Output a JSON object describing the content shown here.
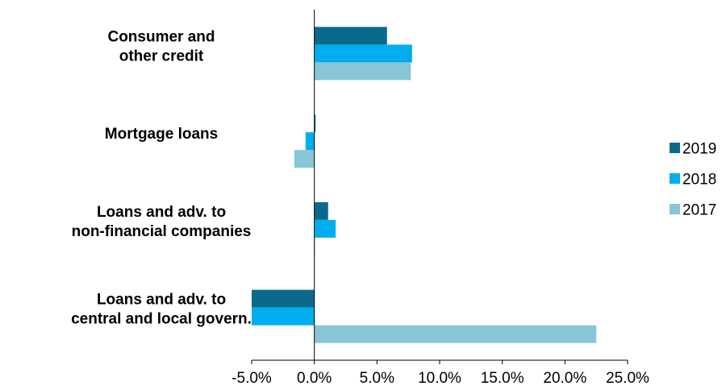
{
  "chart_data": {
    "type": "bar",
    "orientation": "horizontal",
    "categories": [
      [
        "Consumer and",
        "other credit"
      ],
      [
        "Mortgage loans"
      ],
      [
        "Loans and adv. to",
        "non-financial companies"
      ],
      [
        "Loans and adv. to",
        "central and local govern."
      ]
    ],
    "series": [
      {
        "name": "2019",
        "color": "#0b6a8c",
        "values": [
          5.8,
          0.1,
          1.1,
          -5.0
        ]
      },
      {
        "name": "2018",
        "color": "#00aeef",
        "values": [
          7.8,
          -0.7,
          1.7,
          -5.0
        ]
      },
      {
        "name": "2017",
        "color": "#86c6d8",
        "values": [
          7.7,
          -1.6,
          0.0,
          22.5
        ]
      }
    ],
    "xlim": [
      -5.0,
      25.0
    ],
    "xticks": [
      -5.0,
      0.0,
      5.0,
      10.0,
      15.0,
      20.0,
      25.0
    ],
    "xtick_labels": [
      "-5.0%",
      "0.0%",
      "5.0%",
      "10.0%",
      "15.0%",
      "20.0%",
      "25.0%"
    ],
    "legend_position": "right",
    "grid": false
  }
}
